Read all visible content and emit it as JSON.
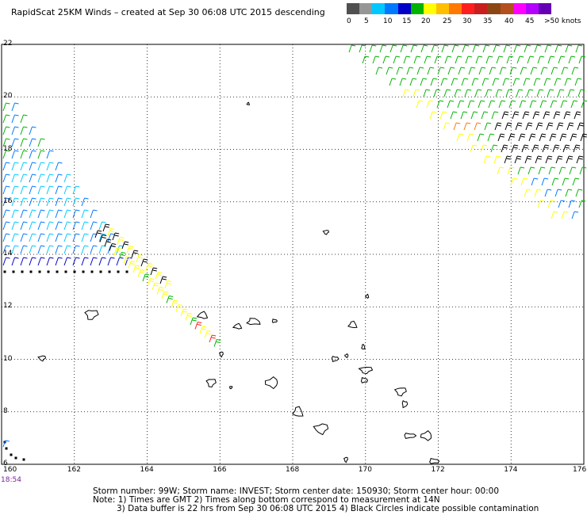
{
  "header": {
    "title": "RapidScat 25KM Winds – created at Sep 30 06:08 UTC 2015 descending"
  },
  "legend": {
    "labels": [
      "0",
      "5",
      "10",
      "15",
      "20",
      "25",
      "30",
      "35",
      "40",
      "45",
      ">50 knots"
    ],
    "colors": [
      "#505050",
      "#969696",
      "#00c8ff",
      "#0078ff",
      "#0000c8",
      "#00b400",
      "#ffff00",
      "#ffbe00",
      "#ff7800",
      "#ff1e1e",
      "#c81e1e",
      "#8c4614",
      "#b4501e",
      "#ff00ff",
      "#b400ff",
      "#6400b4"
    ]
  },
  "map": {
    "y_axis_labels": [
      "22",
      "20",
      "18",
      "16",
      "14",
      "12",
      "10",
      "8",
      "6"
    ],
    "x_axis_labels": [
      "160",
      "162",
      "164",
      "166",
      "168",
      "170",
      "172",
      "174",
      "176"
    ],
    "time_label": "18:54",
    "lat_range": [
      6,
      22
    ],
    "lon_range": [
      160,
      176
    ]
  },
  "footer": {
    "line1": "Storm number: 99W;  Storm name: INVEST;  Storm center date: 150930;  Storm center hour: 00:00",
    "line2": "Note: 1) Times are GMT  2) Times along bottom correspond to measurement at 14N",
    "line3": "3) Data buffer is 22 hrs from Sep 30 06:08 UTC 2015   4) Black Circles indicate possible contamination"
  }
}
